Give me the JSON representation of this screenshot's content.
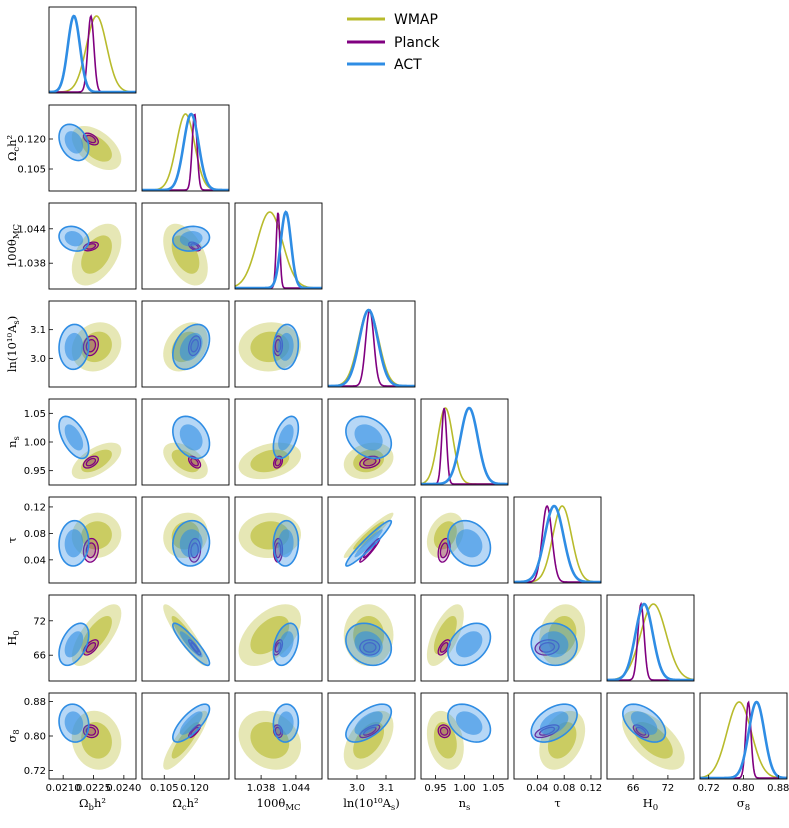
{
  "chart_data": {
    "type": "triangle-corner",
    "legend": {
      "placement": "top-right",
      "entries": [
        {
          "name": "WMAP",
          "color": "#b8bb2c"
        },
        {
          "name": "Planck",
          "color": "#800080"
        },
        {
          "name": "ACT",
          "color": "#2f8de4"
        }
      ]
    },
    "parameters": [
      {
        "label_main": "Ω",
        "label_sub": "b",
        "label_suffix": "h²",
        "range": [
          0.0203,
          0.0246
        ],
        "ticks": [
          {
            "v": 0.021,
            "t": "0.0210"
          },
          {
            "v": 0.0225,
            "t": "0.0225"
          },
          {
            "v": 0.024,
            "t": "0.0240"
          }
        ]
      },
      {
        "label_main": "Ω",
        "label_sub": "c",
        "label_suffix": "h²",
        "range": [
          0.094,
          0.137
        ],
        "ticks": [
          {
            "v": 0.105,
            "t": "0.105"
          },
          {
            "v": 0.12,
            "t": "0.120"
          }
        ]
      },
      {
        "label_main": "100θ",
        "label_sub": "MC",
        "label_suffix": "",
        "range": [
          1.0335,
          1.0485
        ],
        "ticks": [
          {
            "v": 1.038,
            "t": "1.038"
          },
          {
            "v": 1.044,
            "t": "1.044"
          }
        ]
      },
      {
        "label_main": "ln(10¹⁰A",
        "label_sub": "s",
        "label_suffix": ")",
        "range": [
          2.9,
          3.2
        ],
        "ticks": [
          {
            "v": 3.0,
            "t": "3.0"
          },
          {
            "v": 3.1,
            "t": "3.1"
          }
        ]
      },
      {
        "label_main": "n",
        "label_sub": "s",
        "label_suffix": "",
        "range": [
          0.925,
          1.075
        ],
        "ticks": [
          {
            "v": 0.95,
            "t": "0.95"
          },
          {
            "v": 1.0,
            "t": "1.00"
          },
          {
            "v": 1.05,
            "t": "1.05"
          }
        ]
      },
      {
        "label_main": "τ",
        "label_sub": "",
        "label_suffix": "",
        "range": [
          0.005,
          0.135
        ],
        "ticks": [
          {
            "v": 0.04,
            "t": "0.04"
          },
          {
            "v": 0.08,
            "t": "0.08"
          },
          {
            "v": 0.12,
            "t": "0.12"
          }
        ]
      },
      {
        "label_main": "H",
        "label_sub": "0",
        "label_suffix": "",
        "range": [
          61.5,
          76.5
        ],
        "ticks": [
          {
            "v": 66,
            "t": "66"
          },
          {
            "v": 72,
            "t": "72"
          }
        ]
      },
      {
        "label_main": "σ",
        "label_sub": "8",
        "label_suffix": "",
        "range": [
          0.7,
          0.9
        ],
        "ticks": [
          {
            "v": 0.72,
            "t": "0.72"
          },
          {
            "v": 0.8,
            "t": "0.80"
          },
          {
            "v": 0.88,
            "t": "0.88"
          }
        ]
      }
    ],
    "series": [
      {
        "name": "WMAP",
        "color": "#b8bb2c",
        "mean": [
          0.02265,
          0.1155,
          1.0395,
          3.04,
          0.967,
          0.077,
          69.5,
          0.79
        ],
        "sigma": [
          0.0005,
          0.0045,
          0.0022,
          0.035,
          0.013,
          0.014,
          2.2,
          0.028
        ],
        "corr": [
          [
            1,
            -0.5,
            0.45,
            0.15,
            0.6,
            0.05,
            0.7,
            -0.1
          ],
          [
            -0.5,
            1,
            -0.45,
            0.3,
            -0.5,
            0.1,
            -0.9,
            0.85
          ],
          [
            0.45,
            -0.45,
            1,
            0.05,
            0.3,
            0.05,
            0.5,
            -0.2
          ],
          [
            0.15,
            0.3,
            0.05,
            1,
            0.2,
            0.95,
            0.0,
            0.5
          ],
          [
            0.6,
            -0.5,
            0.3,
            0.2,
            1,
            0.3,
            0.65,
            -0.25
          ],
          [
            0.05,
            0.1,
            0.05,
            0.95,
            0.3,
            1,
            0.15,
            0.35
          ],
          [
            0.7,
            -0.9,
            0.5,
            0.0,
            0.65,
            0.15,
            1,
            -0.6
          ],
          [
            -0.1,
            0.85,
            -0.2,
            0.5,
            -0.25,
            0.35,
            -0.6,
            1
          ]
        ]
      },
      {
        "name": "Planck",
        "color": "#800080",
        "mean": [
          0.02237,
          0.12,
          1.04092,
          3.044,
          0.9649,
          0.0544,
          67.36,
          0.8111
        ],
        "sigma": [
          0.00015,
          0.0012,
          0.00031,
          0.014,
          0.0042,
          0.0073,
          0.54,
          0.006
        ],
        "corr": [
          [
            1,
            -0.5,
            0.4,
            0.15,
            0.5,
            0.1,
            0.6,
            -0.1
          ],
          [
            -0.5,
            1,
            -0.5,
            0.3,
            -0.5,
            0.1,
            -0.9,
            0.8
          ],
          [
            0.4,
            -0.5,
            1,
            0.05,
            0.3,
            0.05,
            0.5,
            -0.2
          ],
          [
            0.15,
            0.3,
            0.05,
            1,
            0.3,
            0.95,
            0.0,
            0.7
          ],
          [
            0.5,
            -0.5,
            0.3,
            0.3,
            1,
            0.3,
            0.6,
            -0.1
          ],
          [
            0.1,
            0.1,
            0.05,
            0.95,
            0.3,
            1,
            0.15,
            0.6
          ],
          [
            0.6,
            -0.9,
            0.5,
            0.0,
            0.6,
            0.15,
            1,
            -0.6
          ],
          [
            -0.1,
            0.8,
            -0.2,
            0.7,
            -0.1,
            0.6,
            -0.6,
            1
          ]
        ]
      },
      {
        "name": "ACT",
        "color": "#2f8de4",
        "mean": [
          0.02153,
          0.1183,
          1.04227,
          3.04,
          1.008,
          0.065,
          67.9,
          0.83
        ],
        "sigma": [
          0.0003,
          0.0037,
          0.00088,
          0.032,
          0.015,
          0.014,
          1.5,
          0.018
        ],
        "corr": [
          [
            1,
            -0.3,
            -0.2,
            0.05,
            -0.55,
            0.05,
            0.45,
            -0.1
          ],
          [
            -0.3,
            1,
            0.1,
            0.35,
            -0.3,
            0.05,
            -0.9,
            0.75
          ],
          [
            -0.2,
            0.1,
            1,
            0.1,
            0.45,
            0.05,
            0.35,
            0.05
          ],
          [
            0.05,
            0.35,
            0.1,
            1,
            -0.3,
            0.95,
            -0.2,
            0.6
          ],
          [
            -0.55,
            -0.3,
            0.45,
            -0.3,
            1,
            -0.2,
            0.35,
            -0.35
          ],
          [
            0.05,
            0.05,
            0.05,
            0.95,
            -0.2,
            1,
            -0.05,
            0.45
          ],
          [
            0.45,
            -0.9,
            0.35,
            -0.2,
            0.35,
            -0.05,
            1,
            -0.5
          ],
          [
            -0.1,
            0.75,
            0.05,
            0.6,
            -0.35,
            0.45,
            -0.5,
            1
          ]
        ]
      }
    ]
  }
}
